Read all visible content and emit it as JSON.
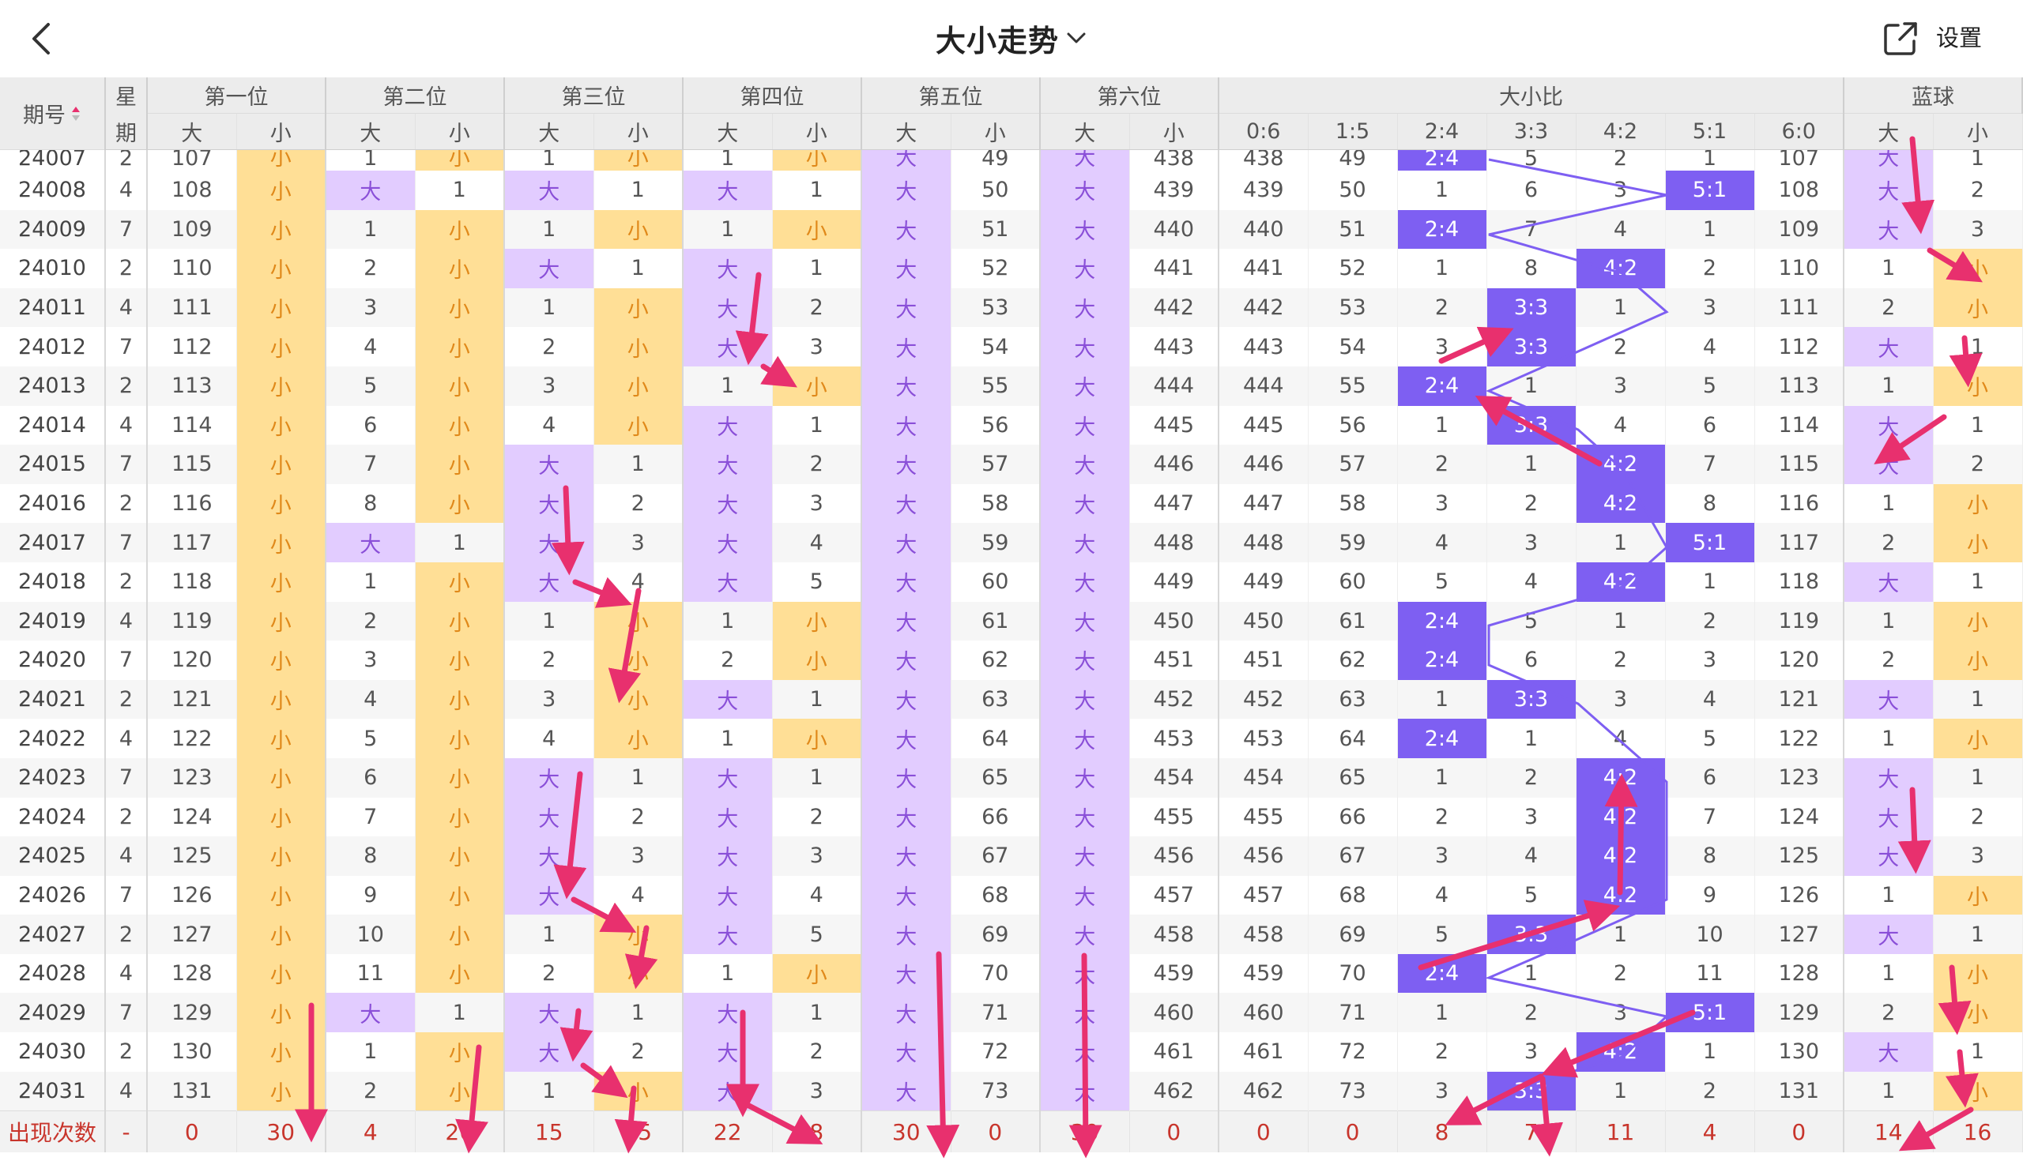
{
  "header": {
    "title": "大小走势",
    "settings_label": "设置",
    "icons": {
      "back": "back-chevron-icon",
      "title_dropdown": "chevron-down-icon",
      "share": "share-external-icon",
      "sort": "sort-arrows-icon"
    }
  },
  "columns": {
    "period": "期号",
    "weekday_top": "星",
    "weekday_bottom": "期",
    "groups": [
      "第一位",
      "第二位",
      "第三位",
      "第四位",
      "第五位",
      "第六位",
      "大小比",
      "蓝球"
    ],
    "big": "大",
    "small": "小",
    "ratios": [
      "0:6",
      "1:5",
      "2:4",
      "3:3",
      "4:2",
      "5:1",
      "6:0"
    ]
  },
  "rows": [
    {
      "period": "24007",
      "wd": "2",
      "cells": [
        "107",
        "小",
        "1",
        "小",
        "1",
        "小",
        "1",
        "小",
        "大",
        "49",
        "大",
        "438",
        "438",
        "49",
        "2:4",
        "5",
        "2",
        "1",
        "107",
        "大",
        "1"
      ]
    },
    {
      "period": "24008",
      "wd": "4",
      "cells": [
        "108",
        "小",
        "大",
        "1",
        "大",
        "1",
        "大",
        "1",
        "大",
        "50",
        "大",
        "439",
        "439",
        "50",
        "1",
        "6",
        "3",
        "5:1",
        "108",
        "大",
        "2"
      ]
    },
    {
      "period": "24009",
      "wd": "7",
      "cells": [
        "109",
        "小",
        "1",
        "小",
        "1",
        "小",
        "1",
        "小",
        "大",
        "51",
        "大",
        "440",
        "440",
        "51",
        "2:4",
        "7",
        "4",
        "1",
        "109",
        "大",
        "3"
      ]
    },
    {
      "period": "24010",
      "wd": "2",
      "cells": [
        "110",
        "小",
        "2",
        "小",
        "大",
        "1",
        "大",
        "1",
        "大",
        "52",
        "大",
        "441",
        "441",
        "52",
        "1",
        "8",
        "4:2",
        "2",
        "110",
        "1",
        "小"
      ]
    },
    {
      "period": "24011",
      "wd": "4",
      "cells": [
        "111",
        "小",
        "3",
        "小",
        "1",
        "小",
        "大",
        "2",
        "大",
        "53",
        "大",
        "442",
        "442",
        "53",
        "2",
        "3:3",
        "1",
        "3",
        "111",
        "2",
        "小"
      ]
    },
    {
      "period": "24012",
      "wd": "7",
      "cells": [
        "112",
        "小",
        "4",
        "小",
        "2",
        "小",
        "大",
        "3",
        "大",
        "54",
        "大",
        "443",
        "443",
        "54",
        "3",
        "3:3",
        "2",
        "4",
        "112",
        "大",
        "1"
      ]
    },
    {
      "period": "24013",
      "wd": "2",
      "cells": [
        "113",
        "小",
        "5",
        "小",
        "3",
        "小",
        "1",
        "小",
        "大",
        "55",
        "大",
        "444",
        "444",
        "55",
        "2:4",
        "1",
        "3",
        "5",
        "113",
        "1",
        "小"
      ]
    },
    {
      "period": "24014",
      "wd": "4",
      "cells": [
        "114",
        "小",
        "6",
        "小",
        "4",
        "小",
        "大",
        "1",
        "大",
        "56",
        "大",
        "445",
        "445",
        "56",
        "1",
        "3:3",
        "4",
        "6",
        "114",
        "大",
        "1"
      ]
    },
    {
      "period": "24015",
      "wd": "7",
      "cells": [
        "115",
        "小",
        "7",
        "小",
        "大",
        "1",
        "大",
        "2",
        "大",
        "57",
        "大",
        "446",
        "446",
        "57",
        "2",
        "1",
        "4:2",
        "7",
        "115",
        "大",
        "2"
      ]
    },
    {
      "period": "24016",
      "wd": "2",
      "cells": [
        "116",
        "小",
        "8",
        "小",
        "大",
        "2",
        "大",
        "3",
        "大",
        "58",
        "大",
        "447",
        "447",
        "58",
        "3",
        "2",
        "4:2",
        "8",
        "116",
        "1",
        "小"
      ]
    },
    {
      "period": "24017",
      "wd": "7",
      "cells": [
        "117",
        "小",
        "大",
        "1",
        "大",
        "3",
        "大",
        "4",
        "大",
        "59",
        "大",
        "448",
        "448",
        "59",
        "4",
        "3",
        "1",
        "5:1",
        "117",
        "2",
        "小"
      ]
    },
    {
      "period": "24018",
      "wd": "2",
      "cells": [
        "118",
        "小",
        "1",
        "小",
        "大",
        "4",
        "大",
        "5",
        "大",
        "60",
        "大",
        "449",
        "449",
        "60",
        "5",
        "4",
        "4:2",
        "1",
        "118",
        "大",
        "1"
      ]
    },
    {
      "period": "24019",
      "wd": "4",
      "cells": [
        "119",
        "小",
        "2",
        "小",
        "1",
        "小",
        "1",
        "小",
        "大",
        "61",
        "大",
        "450",
        "450",
        "61",
        "2:4",
        "5",
        "1",
        "2",
        "119",
        "1",
        "小"
      ]
    },
    {
      "period": "24020",
      "wd": "7",
      "cells": [
        "120",
        "小",
        "3",
        "小",
        "2",
        "小",
        "2",
        "小",
        "大",
        "62",
        "大",
        "451",
        "451",
        "62",
        "2:4",
        "6",
        "2",
        "3",
        "120",
        "2",
        "小"
      ]
    },
    {
      "period": "24021",
      "wd": "2",
      "cells": [
        "121",
        "小",
        "4",
        "小",
        "3",
        "小",
        "大",
        "1",
        "大",
        "63",
        "大",
        "452",
        "452",
        "63",
        "1",
        "3:3",
        "3",
        "4",
        "121",
        "大",
        "1"
      ]
    },
    {
      "period": "24022",
      "wd": "4",
      "cells": [
        "122",
        "小",
        "5",
        "小",
        "4",
        "小",
        "1",
        "小",
        "大",
        "64",
        "大",
        "453",
        "453",
        "64",
        "2:4",
        "1",
        "4",
        "5",
        "122",
        "1",
        "小"
      ]
    },
    {
      "period": "24023",
      "wd": "7",
      "cells": [
        "123",
        "小",
        "6",
        "小",
        "大",
        "1",
        "大",
        "1",
        "大",
        "65",
        "大",
        "454",
        "454",
        "65",
        "1",
        "2",
        "4:2",
        "6",
        "123",
        "大",
        "1"
      ]
    },
    {
      "period": "24024",
      "wd": "2",
      "cells": [
        "124",
        "小",
        "7",
        "小",
        "大",
        "2",
        "大",
        "2",
        "大",
        "66",
        "大",
        "455",
        "455",
        "66",
        "2",
        "3",
        "4:2",
        "7",
        "124",
        "大",
        "2"
      ]
    },
    {
      "period": "24025",
      "wd": "4",
      "cells": [
        "125",
        "小",
        "8",
        "小",
        "大",
        "3",
        "大",
        "3",
        "大",
        "67",
        "大",
        "456",
        "456",
        "67",
        "3",
        "4",
        "4:2",
        "8",
        "125",
        "大",
        "3"
      ]
    },
    {
      "period": "24026",
      "wd": "7",
      "cells": [
        "126",
        "小",
        "9",
        "小",
        "大",
        "4",
        "大",
        "4",
        "大",
        "68",
        "大",
        "457",
        "457",
        "68",
        "4",
        "5",
        "4:2",
        "9",
        "126",
        "1",
        "小"
      ]
    },
    {
      "period": "24027",
      "wd": "2",
      "cells": [
        "127",
        "小",
        "10",
        "小",
        "1",
        "小",
        "大",
        "5",
        "大",
        "69",
        "大",
        "458",
        "458",
        "69",
        "5",
        "3:3",
        "1",
        "10",
        "127",
        "大",
        "1"
      ]
    },
    {
      "period": "24028",
      "wd": "4",
      "cells": [
        "128",
        "小",
        "11",
        "小",
        "2",
        "小",
        "1",
        "小",
        "大",
        "70",
        "大",
        "459",
        "459",
        "70",
        "2:4",
        "1",
        "2",
        "11",
        "128",
        "1",
        "小"
      ]
    },
    {
      "period": "24029",
      "wd": "7",
      "cells": [
        "129",
        "小",
        "大",
        "1",
        "大",
        "1",
        "大",
        "1",
        "大",
        "71",
        "大",
        "460",
        "460",
        "71",
        "1",
        "2",
        "3",
        "5:1",
        "129",
        "2",
        "小"
      ]
    },
    {
      "period": "24030",
      "wd": "2",
      "cells": [
        "130",
        "小",
        "1",
        "小",
        "大",
        "2",
        "大",
        "2",
        "大",
        "72",
        "大",
        "461",
        "461",
        "72",
        "2",
        "3",
        "4:2",
        "1",
        "130",
        "大",
        "1"
      ]
    },
    {
      "period": "24031",
      "wd": "4",
      "cells": [
        "131",
        "小",
        "2",
        "小",
        "1",
        "小",
        "大",
        "3",
        "大",
        "73",
        "大",
        "462",
        "462",
        "73",
        "3",
        "3:3",
        "1",
        "2",
        "131",
        "1",
        "小"
      ]
    }
  ],
  "footer": {
    "label": "出现次数",
    "weekday": "-",
    "counts": [
      "0",
      "30",
      "4",
      "26",
      "15",
      "15",
      "22",
      "8",
      "30",
      "0",
      "30",
      "0",
      "0",
      "0",
      "8",
      "7",
      "11",
      "4",
      "0",
      "14",
      "16"
    ]
  },
  "colors": {
    "big_bg": "#e2ccff",
    "big_text": "#8a4fd8",
    "small_bg": "#ffdf96",
    "small_text": "#e0891a",
    "ratio_bg": "#7e5ff2",
    "annotation_arrow": "#e8306e",
    "count_text": "#c8352c"
  }
}
